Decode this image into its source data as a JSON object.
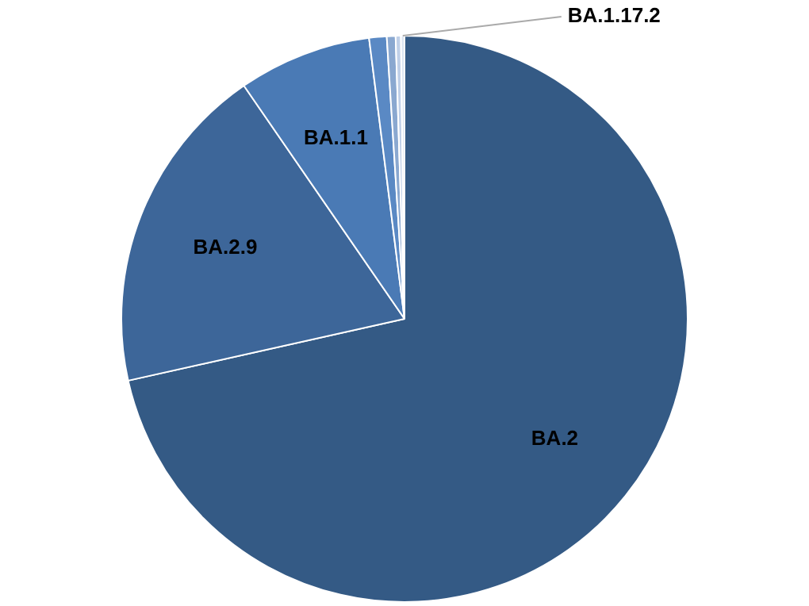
{
  "chart_data": {
    "type": "pie",
    "categories": [
      "BA.2",
      "BA.2.9",
      "BA.1.1",
      null,
      null,
      null,
      "BA.1.17.2"
    ],
    "values": [
      71.5,
      18.9,
      7.6,
      1.0,
      0.5,
      0.3,
      0.2
    ],
    "colors": [
      "#345a85",
      "#3d6699",
      "#4a7ab5",
      "#5a89c4",
      "#8aa8d0",
      "#c0d0e8",
      "#dde6f2"
    ],
    "data_labels": false,
    "legend": false
  }
}
